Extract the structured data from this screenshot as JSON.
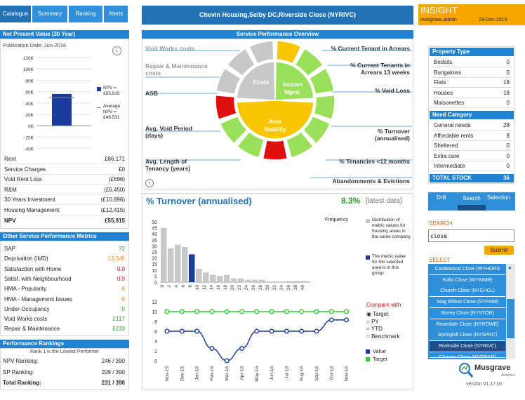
{
  "tabs": [
    "Catalogue",
    "Summary",
    "Ranking",
    "Alerts"
  ],
  "header": {
    "title": "Chevin Housing,Selby DC,Riverside Close (NYRIVC)"
  },
  "insight": {
    "brand": "INSIGHT",
    "user": "musgrave.admin",
    "date": "29-Dec-2016"
  },
  "npv": {
    "title": "Net Present Value (30 Year)",
    "pub": "Publication Date: Jun-2016",
    "y_ticks": [
      "120K",
      "100K",
      "80K",
      "60K",
      "40K",
      "20K",
      "0K",
      "-20K",
      "-40K"
    ],
    "legend_npv": "NPV = £55,915",
    "legend_avg": "Average NPV = £49,531",
    "bar_value": 55915,
    "avg_value": 49531,
    "rows": [
      {
        "label": "Rent",
        "value": "£86,171"
      },
      {
        "label": "Service Charges",
        "value": "£0"
      },
      {
        "label": "Void Rent Loss",
        "value": "(£696)"
      },
      {
        "label": "R&M",
        "value": "(£6,450)"
      },
      {
        "label": "30 Years Investment",
        "value": "(£10,696)"
      },
      {
        "label": "Housing Management",
        "value": "(£12,415)"
      }
    ],
    "total_label": "NPV",
    "total_value": "£55,915"
  },
  "metrics": {
    "title": "Other Service Performance Metrics",
    "rows": [
      {
        "label": "SAP",
        "value": "72",
        "color": "#2e9e2e"
      },
      {
        "label": "Deprivation (IMD)",
        "value": "13,345",
        "color": "#f08c00"
      },
      {
        "label": "Satisfaction with Home",
        "value": "0.0",
        "color": "#dd1111"
      },
      {
        "label": "Satisf. with Neighbourhood",
        "value": "0.0",
        "color": "#dd1111"
      },
      {
        "label": "HMA - Popularity",
        "value": "6",
        "color": "#f08c00"
      },
      {
        "label": "HMA - Management Issues",
        "value": "6",
        "color": "#f08c00"
      },
      {
        "label": "Under-Occupancy",
        "value": "0",
        "color": "#2e9e2e"
      },
      {
        "label": "Void Works costs",
        "value": "£117",
        "color": "#2e9e2e"
      },
      {
        "label": "Repair & Maintenance",
        "value": "£233",
        "color": "#2e9e2e"
      }
    ]
  },
  "rankings": {
    "title": "Performance Rankings",
    "note": "Rank 1 is the Lowest Performer",
    "rows": [
      {
        "label": "NPV Ranking:",
        "value": "246 / 390"
      },
      {
        "label": "SP Ranking:",
        "value": "209 / 390"
      },
      {
        "label": "Total Ranking:",
        "value": "231 / 390"
      }
    ]
  },
  "overview": {
    "title": "Service Performance Overview",
    "left": [
      "Void Works costs",
      "Repair & Maintenance costs",
      "ASB",
      "Avg. Void Period (days)",
      "Avg. Length of Tenancy (years)"
    ],
    "right": [
      "% Current Tenant in Arrears",
      "% Current Tenants in Arrears 13 weeks",
      "% Void Loss",
      "% Turnover (annualised)",
      "% Tenancies <12 months",
      "Abandonments & Evictions"
    ],
    "center": {
      "costs": "Costs",
      "income": "Income Mgmt.",
      "area": "Area Stability"
    }
  },
  "turnover": {
    "title": "% Turnover (annualised)",
    "value": "8.3%",
    "suffix": "[latest data]",
    "freq_label": "Frequency",
    "dist_legend": "Distribution of metric values for housing areas in the same company",
    "metric_legend": "The metric value for the selected area is in this group",
    "compare_label": "Compare with",
    "options": [
      "Target",
      "PY",
      "YTD",
      "Benchmark"
    ],
    "value_legend": "Value",
    "target_legend": "Target"
  },
  "chart_data": [
    {
      "type": "bar",
      "title": "Distribution",
      "categories": [
        "0",
        "2",
        "4",
        "6",
        "8",
        "10",
        "12",
        "14",
        "16",
        "18",
        "20",
        "22",
        "24",
        "26",
        "28",
        "30",
        "32",
        "34",
        "36",
        "38",
        "40"
      ],
      "values": [
        45,
        28,
        31,
        29,
        23,
        11,
        8,
        6,
        5,
        6,
        3,
        3,
        2,
        2,
        2,
        0,
        0,
        0,
        1,
        1,
        1
      ],
      "highlight_index": 4,
      "ylim": [
        0,
        50
      ],
      "y_ticks": [
        "50",
        "45",
        "40",
        "35",
        "30",
        "25",
        "20",
        "15",
        "10",
        "5",
        "0"
      ]
    },
    {
      "type": "line",
      "categories": [
        "Nov-15",
        "Dec-15",
        "Jan-16",
        "Feb-16",
        "Mar-16",
        "Apr-16",
        "May-16",
        "Jun-16",
        "Jul-16",
        "Aug-16",
        "Sep-16",
        "Oct-16",
        "Nov-16"
      ],
      "series": [
        {
          "name": "Value",
          "values": [
            6,
            6,
            6,
            2.5,
            0,
            2.5,
            6,
            6,
            6,
            6,
            6,
            8.3,
            8.3
          ]
        },
        {
          "name": "Target",
          "values": [
            10,
            10,
            10,
            10,
            10,
            10,
            10,
            10,
            10,
            10,
            10,
            10,
            10
          ]
        }
      ],
      "ylim": [
        0,
        12
      ],
      "y_ticks": [
        "12",
        "10",
        "8",
        "6",
        "4",
        "2",
        "0"
      ]
    }
  ],
  "property": {
    "title": "Property Type",
    "rows": [
      {
        "label": "Bedsits",
        "value": "0"
      },
      {
        "label": "Bungalows",
        "value": "0"
      },
      {
        "label": "Flats",
        "value": "18"
      },
      {
        "label": "Houses",
        "value": "18"
      },
      {
        "label": "Maisonettes",
        "value": "0"
      }
    ],
    "need_title": "Need Category",
    "need_rows": [
      {
        "label": "General needs",
        "value": "28"
      },
      {
        "label": "Affordable rents",
        "value": "8"
      },
      {
        "label": "Sheltered",
        "value": "0"
      },
      {
        "label": "Extra care",
        "value": "0"
      },
      {
        "label": "Intermediate",
        "value": "0"
      }
    ],
    "total_label": "TOTAL STOCK",
    "total_value": "36"
  },
  "drill": {
    "drill": "Drill",
    "search": "Search",
    "selection": "Selection"
  },
  "search": {
    "label": "SEARCH",
    "value": "close",
    "submit": "Submit"
  },
  "select": {
    "label": "SELECT",
    "items": [
      "Castlewood Close (WYHORS",
      "Sofia Close (WYKIMR)",
      "Church Close (NYCHCL)",
      "Stag Willow Close (SYP068)",
      "Storey Close (NYSTOR)",
      "Rowedale Close (NYROWE)",
      "Springhill Close (NYSPRC)",
      "Riverside Close (NYRIVC)",
      "Chantry Close (WYFBAR)"
    ],
    "active_index": 7
  },
  "footer": {
    "brand": "Musgrave",
    "sub": "Analytics",
    "version": "version 01.17.01"
  }
}
